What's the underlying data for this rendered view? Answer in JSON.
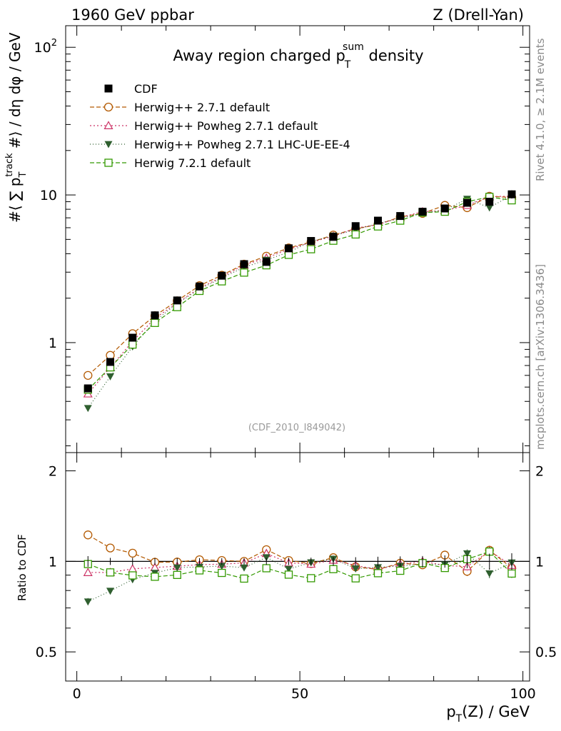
{
  "header": {
    "left": "1960 GeV ppbar",
    "right": "Z (Drell-Yan)"
  },
  "watermarks": {
    "version": "Rivet 4.1.0, ≥ 2.1M events",
    "source": "mcplots.cern.ch [arXiv:1306.3436]",
    "analysis": "(CDF_2010_I849042)"
  },
  "chart_data": {
    "type": "scatter",
    "title": "Away region charged p_T^sum density",
    "title_parts": {
      "main": "Away region charged p",
      "sup": "sum",
      "sub": "T",
      "tail": " density"
    },
    "xlabel": "p_T(Z) / GeV",
    "xlabel_parts": {
      "p": "p",
      "sub": "T",
      "rest": "(Z) / GeV"
    },
    "ylabel": "#⟨ ∑ p_T^track #⟩ / dη dφ / GeV",
    "ylabel_parts": {
      "pre": "#⟨ ∑ p",
      "sup": "track",
      "sub": "T",
      "post": " #⟩ / dη dφ / GeV"
    },
    "ratio_ylabel": "Ratio to CDF",
    "xlim": [
      -2.5,
      101.5
    ],
    "ylim": [
      0.18,
      140
    ],
    "yscale": "log",
    "ratio_ylim": [
      0.4,
      2.3
    ],
    "ratio_yscale": "log",
    "x_ticks": [
      "0",
      "50",
      "100"
    ],
    "y_ticks": [
      "1",
      "10",
      "10^2"
    ],
    "ratio_ticks": [
      "0.5",
      "1",
      "2"
    ],
    "legend_position": "top-left",
    "x": [
      2.5,
      7.5,
      12.5,
      17.5,
      22.5,
      27.5,
      32.5,
      37.5,
      42.5,
      47.5,
      52.5,
      57.5,
      62.5,
      67.5,
      72.5,
      77.5,
      82.5,
      87.5,
      92.5,
      97.5
    ],
    "series": [
      {
        "name": "CDF",
        "label": "CDF",
        "color": "#000000",
        "marker": "filled-square",
        "dash": "",
        "values": [
          0.49,
          0.74,
          1.08,
          1.53,
          1.93,
          2.4,
          2.84,
          3.4,
          3.52,
          4.35,
          4.88,
          5.2,
          6.15,
          6.7,
          7.2,
          7.7,
          8.1,
          8.85,
          9.0,
          10.1
        ],
        "errors": [
          0.02,
          0.02,
          0.03,
          0.04,
          0.05,
          0.06,
          0.07,
          0.08,
          0.09,
          0.12,
          0.14,
          0.17,
          0.2,
          0.24,
          0.28,
          0.32,
          0.38,
          0.45,
          0.55,
          0.65
        ]
      },
      {
        "name": "herwigpp-271-default",
        "label": "Herwig++ 2.7.1 default",
        "color": "#b35900",
        "marker": "open-circle",
        "dash": "6,3",
        "values": [
          0.6,
          0.82,
          1.15,
          1.52,
          1.92,
          2.43,
          2.86,
          3.4,
          3.85,
          4.38,
          4.8,
          5.35,
          5.9,
          6.3,
          7.1,
          7.5,
          8.5,
          8.2,
          9.8,
          9.6
        ],
        "errors": [
          0.01,
          0.01,
          0.02,
          0.02,
          0.03,
          0.03,
          0.04,
          0.05,
          0.06,
          0.07,
          0.09,
          0.1,
          0.12,
          0.14,
          0.17,
          0.2,
          0.24,
          0.29,
          0.34,
          0.4
        ]
      },
      {
        "name": "herwigpp-powheg-271-default",
        "label": "Herwig++ Powheg 2.7.1 default",
        "color": "#cc3366",
        "marker": "open-triangle",
        "dash": "2,3",
        "values": [
          0.45,
          0.68,
          1.02,
          1.46,
          1.86,
          2.34,
          2.78,
          3.36,
          3.74,
          4.3,
          4.78,
          5.25,
          5.96,
          6.3,
          7.05,
          7.7,
          7.85,
          8.5,
          9.75,
          9.8
        ],
        "errors": [
          0.01,
          0.01,
          0.02,
          0.02,
          0.03,
          0.03,
          0.04,
          0.05,
          0.06,
          0.07,
          0.09,
          0.1,
          0.12,
          0.14,
          0.17,
          0.2,
          0.24,
          0.29,
          0.34,
          0.4
        ]
      },
      {
        "name": "herwigpp-powheg-271-lhc-ue-ee-4",
        "label": "Herwig++ Powheg 2.7.1 LHC-UE-EE-4",
        "color": "#2f5f2f",
        "marker": "filled-triangle-down",
        "dash": "1,3",
        "values": [
          0.36,
          0.59,
          0.94,
          1.4,
          1.84,
          2.3,
          2.74,
          3.24,
          3.63,
          4.1,
          4.84,
          5.3,
          5.82,
          6.4,
          6.95,
          7.55,
          7.9,
          9.4,
          8.2,
          10.0
        ],
        "errors": [
          0.01,
          0.01,
          0.02,
          0.02,
          0.03,
          0.03,
          0.04,
          0.05,
          0.06,
          0.07,
          0.09,
          0.1,
          0.12,
          0.14,
          0.17,
          0.2,
          0.24,
          0.29,
          0.34,
          0.4
        ]
      },
      {
        "name": "herwig-721-default",
        "label": "Herwig 7.2.1 default",
        "color": "#339900",
        "marker": "open-square",
        "dash": "6,3",
        "values": [
          0.48,
          0.68,
          0.97,
          1.36,
          1.74,
          2.24,
          2.6,
          2.98,
          3.34,
          3.93,
          4.29,
          4.9,
          5.4,
          6.12,
          6.7,
          7.6,
          7.7,
          9.0,
          9.7,
          9.2
        ],
        "errors": [
          0.01,
          0.01,
          0.02,
          0.02,
          0.03,
          0.03,
          0.04,
          0.05,
          0.06,
          0.07,
          0.09,
          0.1,
          0.12,
          0.14,
          0.17,
          0.2,
          0.24,
          0.29,
          0.34,
          0.4
        ]
      }
    ]
  }
}
